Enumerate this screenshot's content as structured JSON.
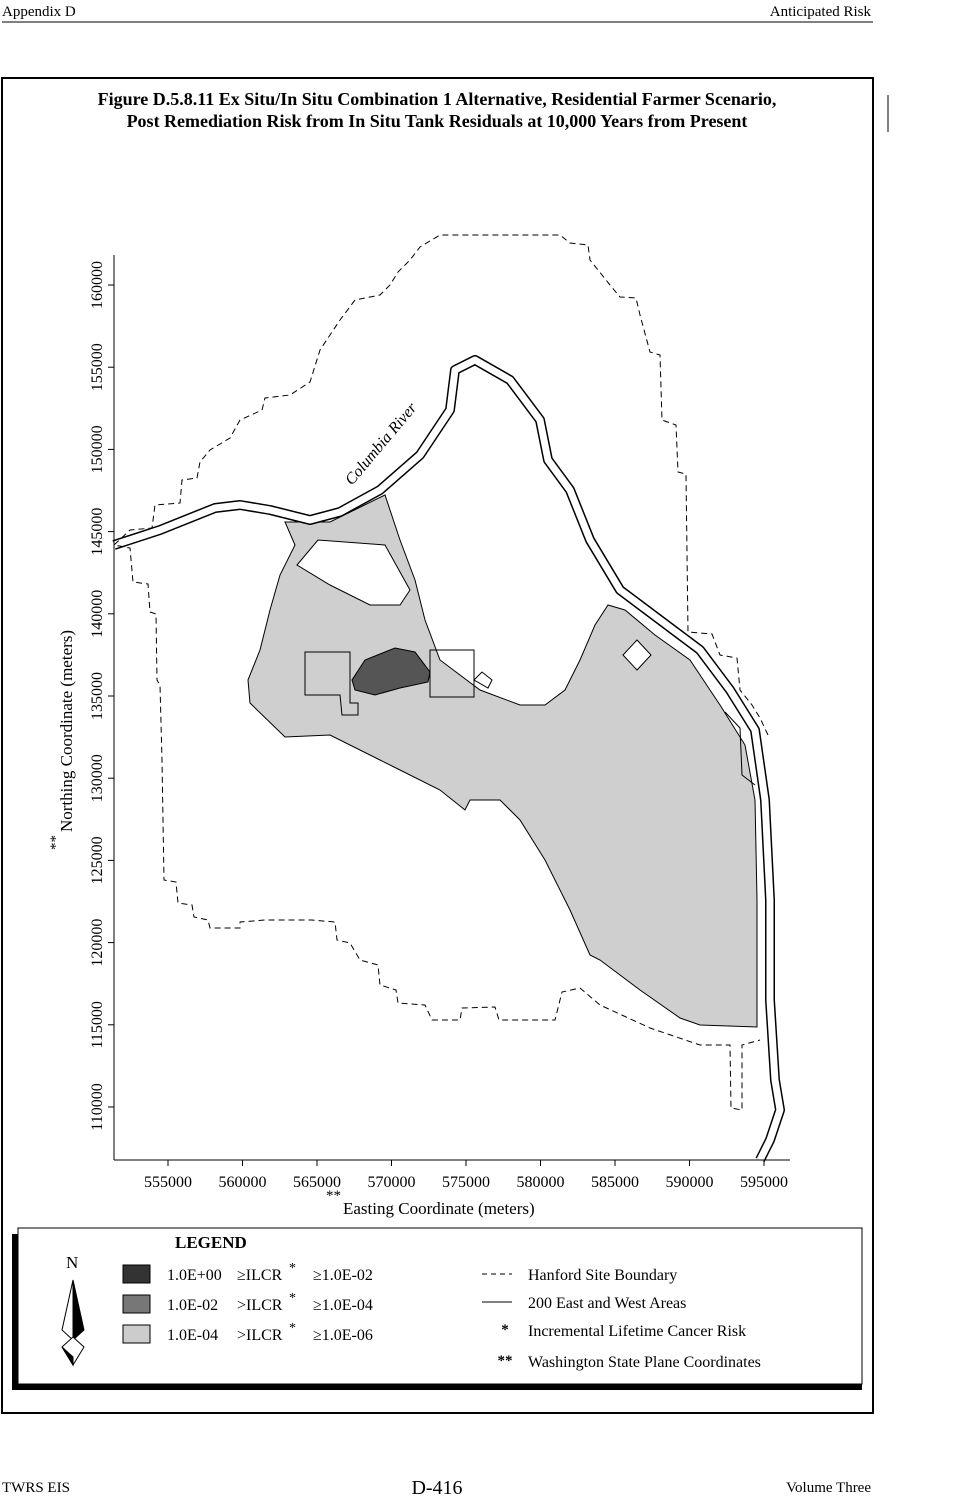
{
  "header": {
    "left": "Appendix D",
    "right": "Anticipated Risk"
  },
  "figure": {
    "title": [
      "Figure D.5.8.11  Ex Situ/In Situ Combination 1 Alternative, Residential Farmer Scenario,",
      "Post Remediation Risk from In Situ Tank Residuals at 10,000 Years from Present"
    ],
    "river_label": "Columbia River",
    "xticks": [
      "555000",
      "560000",
      "565000",
      "570000",
      "575000",
      "580000",
      "585000",
      "590000",
      "595000"
    ],
    "yticks": [
      "160000",
      "155000",
      "150000",
      "145000",
      "140000",
      "135000",
      "130000",
      "125000",
      "120000",
      "115000",
      "110000"
    ],
    "xlabel_marker": "**",
    "xlabel": "Easting Coordinate (meters)",
    "ylabel_marker": "**",
    "ylabel": "Northing Coordinate (meters)"
  },
  "legend": {
    "title": "LEGEND",
    "north": "N",
    "risk_items": [
      {
        "high": "1.0E+00",
        "relation": "≥ILCR",
        "marker": "*",
        "low": "≥1.0E-02"
      },
      {
        "high": "1.0E-02",
        "relation": ">ILCR",
        "marker": "*",
        "low": "≥1.0E-04"
      },
      {
        "high": "1.0E-04",
        "relation": ">ILCR",
        "marker": "*",
        "low": "≥1.0E-06"
      }
    ],
    "line_items": [
      "Hanford Site Boundary",
      "200 East and West Areas"
    ],
    "notes": [
      {
        "symbol": "*",
        "text": "Incremental Lifetime Cancer Risk"
      },
      {
        "symbol": "**",
        "text": "Washington State Plane Coordinates"
      }
    ]
  },
  "footer": {
    "left": "TWRS EIS",
    "center": "D-416",
    "right": "Volume Three"
  }
}
